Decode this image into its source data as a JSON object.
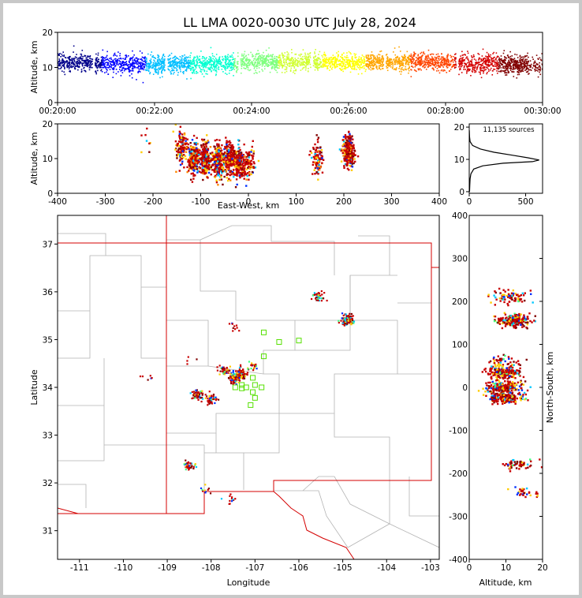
{
  "figure_title": "LL LMA 0020-0030 UTC July 28, 2024",
  "chart_data": [
    {
      "id": "time_height",
      "type": "scatter",
      "title": "LL LMA 0020-0030 UTC July 28, 2024",
      "xlabel": "",
      "ylabel": "Altitude, km",
      "xticklabels": [
        "00:20:00",
        "00:22:00",
        "00:24:00",
        "00:26:00",
        "00:28:00",
        "00:30:00"
      ],
      "xlim": [
        "00:20:00",
        "00:30:00"
      ],
      "ylim": [
        0,
        20
      ],
      "yticks": [
        0,
        10,
        20
      ],
      "color_by": "time",
      "colormap": [
        "#00008b",
        "#0000ff",
        "#00bfff",
        "#00ffd0",
        "#7fff7f",
        "#d0ff2f",
        "#ffff00",
        "#ffa500",
        "#ff4500",
        "#d40000",
        "#800000"
      ],
      "clusters": [
        {
          "t_min": 0.0,
          "median_alt_km": 11.5,
          "spread_km": 2.2,
          "count": 600
        },
        {
          "t_min": 1.5,
          "median_alt_km": 11.0,
          "spread_km": 2.4,
          "count": 600
        },
        {
          "t_min": 3.0,
          "median_alt_km": 11.0,
          "spread_km": 2.4,
          "count": 600
        },
        {
          "t_min": 4.5,
          "median_alt_km": 11.5,
          "spread_km": 2.2,
          "count": 600
        },
        {
          "t_min": 6.0,
          "median_alt_km": 11.5,
          "spread_km": 2.2,
          "count": 600
        },
        {
          "t_min": 7.5,
          "median_alt_km": 11.5,
          "spread_km": 2.2,
          "count": 600
        },
        {
          "t_min": 9.0,
          "median_alt_km": 11.0,
          "spread_km": 2.4,
          "count": 600
        },
        {
          "t_min": 10.0,
          "median_alt_km": 10.5,
          "spread_km": 2.4,
          "count": 300
        }
      ],
      "grid": false
    },
    {
      "id": "ew_height",
      "type": "scatter",
      "xlabel": "East-West, km",
      "ylabel": "Altitude, km",
      "xlim": [
        -400,
        400
      ],
      "xticks": [
        -400,
        -300,
        -200,
        -100,
        0,
        100,
        200,
        300,
        400
      ],
      "ylim": [
        0,
        20
      ],
      "yticks": [
        0,
        10,
        20
      ],
      "clusters": [
        {
          "x_km": -210,
          "alt_km": 13,
          "count": 8
        },
        {
          "x_km": -140,
          "alt_km": 13,
          "count": 120
        },
        {
          "x_km": -115,
          "alt_km": 10,
          "count": 220
        },
        {
          "x_km": -90,
          "alt_km": 10,
          "count": 220
        },
        {
          "x_km": -65,
          "alt_km": 9.5,
          "count": 240
        },
        {
          "x_km": -40,
          "alt_km": 10,
          "count": 200
        },
        {
          "x_km": -20,
          "alt_km": 9,
          "count": 180
        },
        {
          "x_km": 0,
          "alt_km": 8.5,
          "count": 90
        },
        {
          "x_km": 145,
          "alt_km": 10,
          "count": 90
        },
        {
          "x_km": 210,
          "alt_km": 12,
          "count": 250
        }
      ],
      "grid": false
    },
    {
      "id": "alt_histogram",
      "type": "line",
      "annotation": "11,135 sources",
      "xlabel": "",
      "ylabel": "",
      "xlim": [
        0,
        650
      ],
      "xticks": [
        0,
        500
      ],
      "ylim": [
        -0.5,
        21
      ],
      "yticks": [
        0,
        10,
        20
      ],
      "profile": [
        {
          "count": 3,
          "alt_km": 0
        },
        {
          "count": 5,
          "alt_km": 2
        },
        {
          "count": 8,
          "alt_km": 4
        },
        {
          "count": 15,
          "alt_km": 5.5
        },
        {
          "count": 40,
          "alt_km": 7
        },
        {
          "count": 120,
          "alt_km": 8
        },
        {
          "count": 300,
          "alt_km": 8.8
        },
        {
          "count": 560,
          "alt_km": 9.3
        },
        {
          "count": 620,
          "alt_km": 9.8
        },
        {
          "count": 520,
          "alt_km": 10.5
        },
        {
          "count": 380,
          "alt_km": 11.3
        },
        {
          "count": 220,
          "alt_km": 12.2
        },
        {
          "count": 100,
          "alt_km": 13.2
        },
        {
          "count": 30,
          "alt_km": 14.3
        },
        {
          "count": 8,
          "alt_km": 15.5
        },
        {
          "count": 3,
          "alt_km": 17
        },
        {
          "count": 1,
          "alt_km": 19
        }
      ],
      "grid": false
    },
    {
      "id": "plan_view",
      "type": "scatter",
      "xlabel": "Longitude",
      "ylabel": "Latitude",
      "xlim": [
        -111.5,
        -102.8
      ],
      "xticks": [
        -111,
        -110,
        -109,
        -108,
        -107,
        -106,
        -105,
        -104,
        -103
      ],
      "ylim": [
        30.4,
        37.6
      ],
      "yticks": [
        31,
        32,
        33,
        34,
        35,
        36,
        37
      ],
      "clusters": [
        {
          "lon": -109.4,
          "lat": 34.17,
          "count": 6
        },
        {
          "lon": -108.5,
          "lat": 34.6,
          "count": 4
        },
        {
          "lon": -108.3,
          "lat": 33.85,
          "count": 60
        },
        {
          "lon": -108.0,
          "lat": 33.75,
          "count": 40
        },
        {
          "lon": -107.7,
          "lat": 34.35,
          "count": 40
        },
        {
          "lon": -107.45,
          "lat": 34.2,
          "count": 100
        },
        {
          "lon": -107.3,
          "lat": 34.3,
          "count": 60
        },
        {
          "lon": -107.05,
          "lat": 34.45,
          "count": 20
        },
        {
          "lon": -107.5,
          "lat": 35.3,
          "count": 10
        },
        {
          "lon": -105.55,
          "lat": 35.92,
          "count": 40
        },
        {
          "lon": -104.9,
          "lat": 35.4,
          "count": 120
        },
        {
          "lon": -108.5,
          "lat": 32.35,
          "count": 40
        },
        {
          "lon": -108.15,
          "lat": 31.85,
          "count": 10
        },
        {
          "lon": -107.55,
          "lat": 31.65,
          "count": 12
        }
      ],
      "stations": [
        {
          "lon": -106.8,
          "lat": 35.15
        },
        {
          "lon": -106.45,
          "lat": 34.95
        },
        {
          "lon": -106.0,
          "lat": 34.98
        },
        {
          "lon": -106.8,
          "lat": 34.65
        },
        {
          "lon": -107.05,
          "lat": 34.2
        },
        {
          "lon": -107.3,
          "lat": 34.05
        },
        {
          "lon": -107.45,
          "lat": 34.0
        },
        {
          "lon": -107.2,
          "lat": 34.0
        },
        {
          "lon": -107.0,
          "lat": 34.05
        },
        {
          "lon": -107.05,
          "lat": 33.9
        },
        {
          "lon": -106.85,
          "lat": 34.0
        },
        {
          "lon": -107.0,
          "lat": 33.78
        },
        {
          "lon": -107.1,
          "lat": 33.63
        },
        {
          "lon": -107.3,
          "lat": 33.98
        }
      ],
      "grid": false
    },
    {
      "id": "ns_height",
      "type": "scatter",
      "xlabel": "Altitude, km",
      "ylabel": "North-South, km",
      "xlim": [
        0,
        20
      ],
      "xticks": [
        0,
        10,
        20
      ],
      "ylim": [
        -400,
        400
      ],
      "yticks": [
        -400,
        -300,
        -200,
        -100,
        0,
        100,
        200,
        300,
        400
      ],
      "clusters": [
        {
          "alt_km": 11,
          "y_km": 210,
          "count": 80
        },
        {
          "alt_km": 12,
          "y_km": 155,
          "count": 220
        },
        {
          "alt_km": 10,
          "y_km": 60,
          "count": 40
        },
        {
          "alt_km": 9.5,
          "y_km": 35,
          "count": 200
        },
        {
          "alt_km": 9.5,
          "y_km": 0,
          "count": 220
        },
        {
          "alt_km": 10,
          "y_km": -25,
          "count": 180
        },
        {
          "alt_km": 13.5,
          "y_km": -180,
          "count": 60
        },
        {
          "alt_km": 15,
          "y_km": -245,
          "count": 30
        }
      ],
      "grid": false
    }
  ]
}
